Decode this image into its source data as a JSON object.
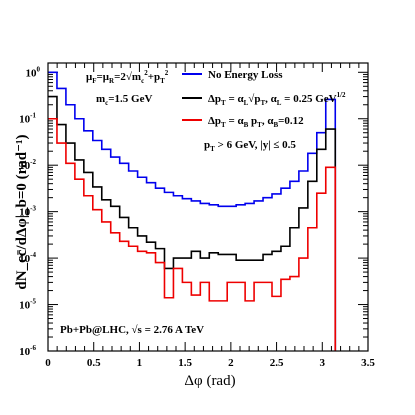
{
  "chart_data": {
    "type": "line",
    "xlabel": "Δφ (rad)",
    "ylabel": "dN_cc̄/dΔφ|_b=0 (rad⁻¹)",
    "xlim": [
      0,
      3.5
    ],
    "ylim_log10": [
      -6,
      0.2
    ],
    "log_y": true,
    "x_ticks": [
      "0",
      "0.5",
      "1",
      "1.5",
      "2",
      "2.5",
      "3",
      "3.5"
    ],
    "y_ticks": [
      {
        "base": "10",
        "exp": "0"
      },
      {
        "base": "10",
        "exp": "-1"
      },
      {
        "base": "10",
        "exp": "-2"
      },
      {
        "base": "10",
        "exp": "-3"
      },
      {
        "base": "10",
        "exp": "-4"
      },
      {
        "base": "10",
        "exp": "-5"
      },
      {
        "base": "10",
        "exp": "-6"
      }
    ],
    "bin_edges": [
      0,
      0.098,
      0.196,
      0.294,
      0.392,
      0.49,
      0.588,
      0.686,
      0.784,
      0.882,
      0.98,
      1.078,
      1.176,
      1.274,
      1.372,
      1.47,
      1.568,
      1.666,
      1.764,
      1.862,
      1.96,
      2.058,
      2.156,
      2.254,
      2.352,
      2.45,
      2.548,
      2.646,
      2.744,
      2.842,
      2.94,
      3.038,
      3.142
    ],
    "series": [
      {
        "name": "No Energy Loss",
        "color": "#0000ee",
        "values": [
          1.0,
          0.45,
          0.2,
          0.1,
          0.055,
          0.034,
          0.022,
          0.015,
          0.011,
          0.0075,
          0.0055,
          0.0042,
          0.0032,
          0.0026,
          0.0022,
          0.0019,
          0.0017,
          0.0015,
          0.0014,
          0.0013,
          0.0013,
          0.0014,
          0.0015,
          0.0017,
          0.002,
          0.0024,
          0.0032,
          0.0045,
          0.0075,
          0.018,
          0.05,
          0.26
        ]
      },
      {
        "name": "Δp_T = α_L √p_T, α_L = 0.25 GeV^1/2",
        "color": "#000000",
        "values": [
          0.3,
          0.075,
          0.03,
          0.013,
          0.007,
          0.0034,
          0.0018,
          0.0013,
          0.00075,
          0.00045,
          0.0003,
          0.00022,
          0.00016,
          6e-05,
          0.0001,
          0.0001,
          0.00014,
          0.0001,
          0.00013,
          0.00012,
          0.00012,
          9e-05,
          9e-05,
          9e-05,
          0.00012,
          0.00014,
          0.00018,
          0.00045,
          0.0012,
          0.0045,
          0.022,
          0.06
        ]
      },
      {
        "name": "Δp_T = α_B p_T, α_B = 0.12",
        "color": "#ee0000",
        "values": [
          0.1,
          0.03,
          0.011,
          0.005,
          0.0022,
          0.0011,
          0.0006,
          0.00035,
          0.00023,
          0.00018,
          0.00014,
          0.00013,
          8e-05,
          1.4e-05,
          6e-05,
          3e-05,
          1.6e-05,
          3e-05,
          1.2e-05,
          1.2e-05,
          3e-05,
          3e-05,
          1.2e-05,
          3e-05,
          3e-05,
          1.5e-05,
          3.5e-05,
          4e-05,
          0.0001,
          0.00045,
          0.0025,
          0.009
        ]
      }
    ],
    "legend_position": "top-right",
    "legend_labels": {
      "no_loss": "No Energy Loss",
      "lpm_main": "Δp",
      "lpm_sub": "T",
      "lpm_rest": " = α",
      "lpm_L": "L",
      "lpm_sqrt": "√p",
      "lpm_T": "T",
      "lpm_alpha": ", α",
      "lpm_L2": "L",
      "lpm_val": " = 0.25 GeV",
      "lpm_exp": "1/2",
      "bh_main": "Δp",
      "bh_sub": "T",
      "bh_rest": " = α",
      "bh_B": "B",
      "bh_p": " p",
      "bh_T": "T",
      "bh_alpha": ", α",
      "bh_B2": "B",
      "bh_val": "=0.12"
    },
    "annotations": {
      "scale_mu_F": "μ",
      "scale_F": "F",
      "scale_eq": "=μ",
      "scale_R": "R",
      "scale_rest": "=2√m",
      "scale_c": "c",
      "scale_sq": "2",
      "scale_plus": "+p",
      "scale_T": "T",
      "scale_sq2": "2",
      "mass_m": "m",
      "mass_c": "c",
      "mass_val": "=1.5 GeV",
      "cut_p": "p",
      "cut_T": "T",
      "cut_rest": " > 6 GeV, |y| ≤ 0.5",
      "collision": "Pb+Pb@LHC, √s = 2.76 A TeV"
    }
  }
}
